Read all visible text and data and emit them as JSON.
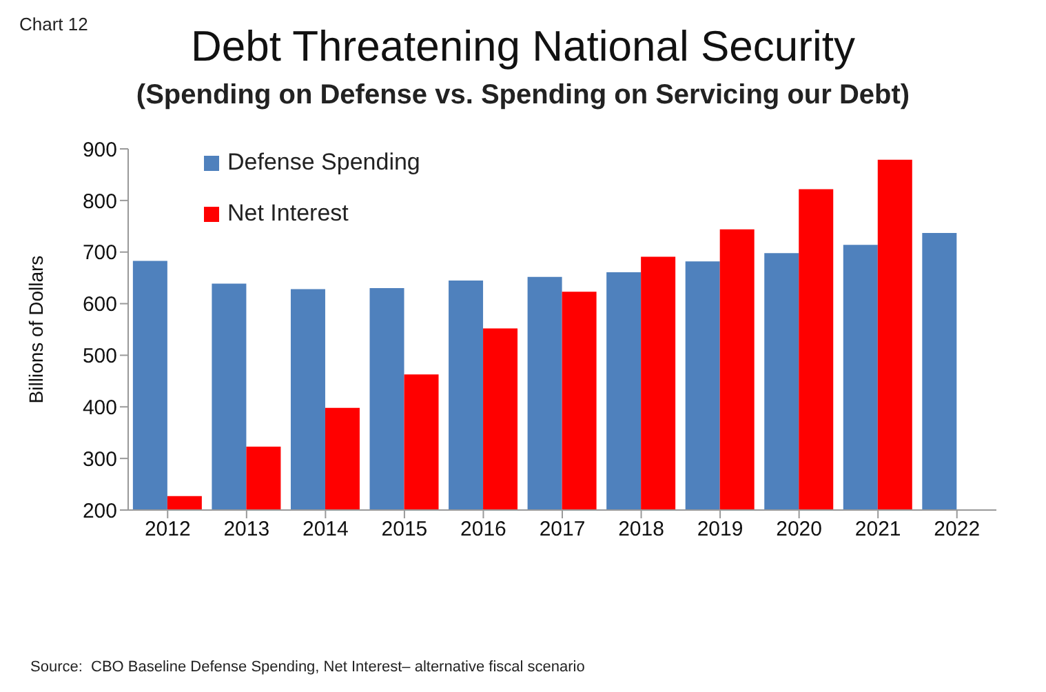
{
  "chart_data": {
    "type": "bar",
    "title": "Debt Threatening National Security",
    "subtitle": "(Spending on Defense vs. Spending on Servicing our Debt)",
    "ylabel": "Billions of Dollars",
    "annotations": [
      "Chart 12",
      "Source:  CBO Baseline Defense Spending, Net Interest– alternative fiscal scenario"
    ],
    "categories": [
      "2012",
      "2013",
      "2014",
      "2015",
      "2016",
      "2017",
      "2018",
      "2019",
      "2020",
      "2021",
      "2022"
    ],
    "series": [
      {
        "name": "Defense Spending",
        "color": "#4f81bd",
        "values": [
          683,
          639,
          628,
          630,
          645,
          652,
          661,
          682,
          698,
          714,
          737
        ]
      },
      {
        "name": "Net Interest",
        "color": "#ff0000",
        "values": [
          227,
          323,
          398,
          463,
          552,
          623,
          691,
          744,
          822,
          879,
          null
        ]
      }
    ],
    "ylim": [
      200,
      900
    ],
    "yticks": [
      200,
      300,
      400,
      500,
      600,
      700,
      800,
      900
    ],
    "grid": false,
    "legend": "top left"
  }
}
